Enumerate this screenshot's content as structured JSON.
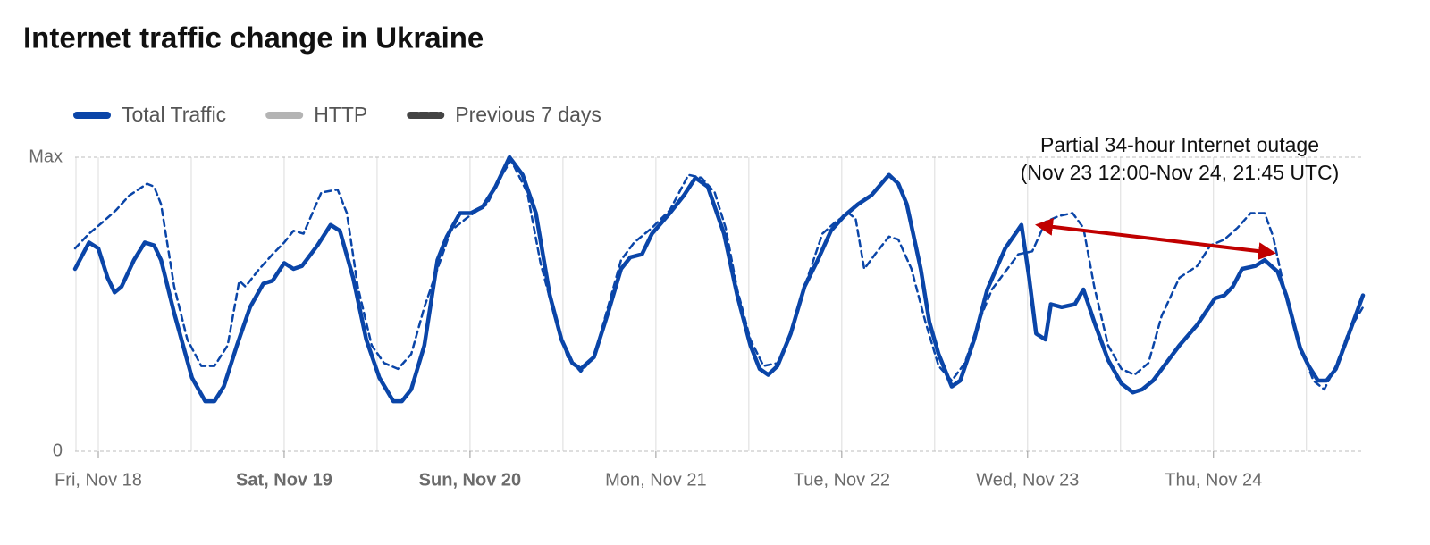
{
  "chart_data": {
    "type": "line",
    "title": "Internet traffic change in Ukraine",
    "xlim": [
      -3,
      163.3
    ],
    "ylim": [
      0,
      1
    ],
    "yticks": [
      {
        "value": 1,
        "label": "Max"
      },
      0
    ],
    "xticks": [
      {
        "value": 0,
        "label": "Fri, Nov 18"
      },
      {
        "value": 24,
        "label": "Sat, Nov 19",
        "weight": "bold"
      },
      {
        "value": 48,
        "label": "Sun, Nov 20",
        "weight": "bold"
      },
      {
        "value": 72,
        "label": "Mon, Nov 21"
      },
      {
        "value": 96,
        "label": "Tue, Nov 22"
      },
      {
        "value": 120,
        "label": "Wed, Nov 23"
      },
      {
        "value": 144,
        "label": "Thu, Nov 24"
      }
    ],
    "x_gridlines": [
      0,
      12,
      24,
      36,
      48,
      60,
      72,
      84,
      96,
      108,
      120,
      132,
      144,
      156
    ],
    "annotation": [
      "Partial 34-hour Internet outage",
      "(Nov 23 12:00-Nov 24, 21:45 UTC)"
    ],
    "series": [
      {
        "name": "Total Traffic",
        "color": "#0a45a8",
        "dash": false,
        "x": [
          -3.0,
          -1.2,
          0,
          1.2,
          2.1,
          3.0,
          4.6,
          6.0,
          7.2,
          8.1,
          9.8,
          12.1,
          13.8,
          15.0,
          16.2,
          17.9,
          19.6,
          21.3,
          22.5,
          24.0,
          25.2,
          26.3,
          28.3,
          30.0,
          31.2,
          32.9,
          34.6,
          36.3,
          38.1,
          39.2,
          40.4,
          42.1,
          43.8,
          45.0,
          46.7,
          48.1,
          49.6,
          51.3,
          53.1,
          54.8,
          56.5,
          58.3,
          59.8,
          61.2,
          62.3,
          64.0,
          65.8,
          67.5,
          68.7,
          70.2,
          71.5,
          73.8,
          75.6,
          77.1,
          78.7,
          80.8,
          82.5,
          84.2,
          85.4,
          86.5,
          87.7,
          89.4,
          91.2,
          92.9,
          94.6,
          96.3,
          98.1,
          99.8,
          102.1,
          103.3,
          104.4,
          106.2,
          107.3,
          108.5,
          110.2,
          111.3,
          113.1,
          114.8,
          117.1,
          119.2,
          120.2,
          121.1,
          122.3,
          123.0,
          124.4,
          126.1,
          127.2,
          128.6,
          130.4,
          132.1,
          133.6,
          134.8,
          136.2,
          137.9,
          139.6,
          141.9,
          144.2,
          145.4,
          146.5,
          147.7,
          149.4,
          150.6,
          152.3,
          153.4,
          155.2,
          156.3,
          157.5,
          158.6,
          159.8,
          161.5,
          163.3
        ],
        "values": [
          0.62,
          0.71,
          0.69,
          0.59,
          0.54,
          0.56,
          0.65,
          0.71,
          0.7,
          0.65,
          0.47,
          0.25,
          0.17,
          0.17,
          0.22,
          0.36,
          0.49,
          0.57,
          0.58,
          0.64,
          0.62,
          0.63,
          0.7,
          0.77,
          0.75,
          0.59,
          0.38,
          0.25,
          0.17,
          0.17,
          0.21,
          0.36,
          0.65,
          0.73,
          0.81,
          0.81,
          0.83,
          0.9,
          1.0,
          0.94,
          0.81,
          0.53,
          0.38,
          0.3,
          0.28,
          0.32,
          0.47,
          0.62,
          0.66,
          0.67,
          0.74,
          0.81,
          0.87,
          0.93,
          0.9,
          0.74,
          0.53,
          0.36,
          0.28,
          0.26,
          0.29,
          0.4,
          0.56,
          0.65,
          0.75,
          0.8,
          0.84,
          0.87,
          0.94,
          0.91,
          0.84,
          0.62,
          0.44,
          0.33,
          0.22,
          0.24,
          0.38,
          0.55,
          0.69,
          0.77,
          0.59,
          0.4,
          0.38,
          0.5,
          0.49,
          0.5,
          0.55,
          0.44,
          0.31,
          0.23,
          0.2,
          0.21,
          0.24,
          0.3,
          0.36,
          0.43,
          0.52,
          0.53,
          0.56,
          0.62,
          0.63,
          0.65,
          0.61,
          0.53,
          0.35,
          0.29,
          0.24,
          0.24,
          0.28,
          0.4,
          0.53
        ]
      },
      {
        "name": "HTTP",
        "color": "#b4b4b4",
        "dash": false,
        "x": [],
        "values": []
      },
      {
        "name": "Previous 7 days",
        "color": "#0a45a8",
        "dash": true,
        "x": [
          -3.0,
          -1.2,
          0.6,
          2.3,
          4.0,
          6.3,
          7.2,
          8.1,
          9.8,
          11.5,
          13.3,
          15.0,
          16.7,
          18.2,
          19.0,
          20.8,
          22.5,
          24.0,
          25.2,
          26.5,
          28.8,
          30.9,
          32.1,
          33.5,
          35.3,
          36.9,
          38.7,
          40.4,
          42.1,
          43.8,
          45.5,
          47.9,
          50.2,
          51.9,
          53.3,
          55.4,
          57.1,
          58.9,
          60.6,
          62.3,
          64.0,
          65.8,
          67.5,
          69.2,
          71.5,
          73.8,
          76.2,
          77.9,
          79.6,
          81.0,
          82.5,
          84.2,
          85.9,
          87.7,
          89.4,
          91.2,
          93.5,
          95.2,
          96.9,
          97.8,
          98.9,
          100.3,
          102.1,
          103.3,
          105.0,
          106.8,
          108.5,
          110.2,
          111.9,
          113.7,
          115.4,
          117.1,
          118.8,
          120.6,
          122.3,
          124.0,
          125.8,
          127.2,
          128.6,
          130.4,
          132.1,
          133.8,
          135.6,
          137.3,
          139.6,
          141.9,
          143.6,
          145.4,
          147.1,
          148.8,
          150.6,
          151.7,
          153.4,
          155.2,
          156.9,
          158.3,
          159.8,
          161.5,
          163.3
        ],
        "values": [
          0.69,
          0.74,
          0.78,
          0.82,
          0.87,
          0.91,
          0.9,
          0.84,
          0.56,
          0.38,
          0.29,
          0.29,
          0.36,
          0.58,
          0.56,
          0.62,
          0.67,
          0.71,
          0.75,
          0.74,
          0.88,
          0.89,
          0.81,
          0.56,
          0.36,
          0.3,
          0.28,
          0.33,
          0.49,
          0.62,
          0.75,
          0.8,
          0.84,
          0.93,
          0.99,
          0.88,
          0.64,
          0.46,
          0.32,
          0.27,
          0.32,
          0.49,
          0.65,
          0.71,
          0.76,
          0.82,
          0.94,
          0.93,
          0.88,
          0.76,
          0.55,
          0.38,
          0.29,
          0.3,
          0.4,
          0.56,
          0.74,
          0.78,
          0.81,
          0.79,
          0.62,
          0.67,
          0.73,
          0.72,
          0.62,
          0.44,
          0.29,
          0.24,
          0.3,
          0.44,
          0.55,
          0.61,
          0.67,
          0.68,
          0.78,
          0.8,
          0.81,
          0.76,
          0.56,
          0.36,
          0.28,
          0.26,
          0.3,
          0.46,
          0.59,
          0.63,
          0.7,
          0.72,
          0.76,
          0.81,
          0.81,
          0.73,
          0.52,
          0.36,
          0.24,
          0.21,
          0.29,
          0.41,
          0.49
        ]
      }
    ]
  }
}
